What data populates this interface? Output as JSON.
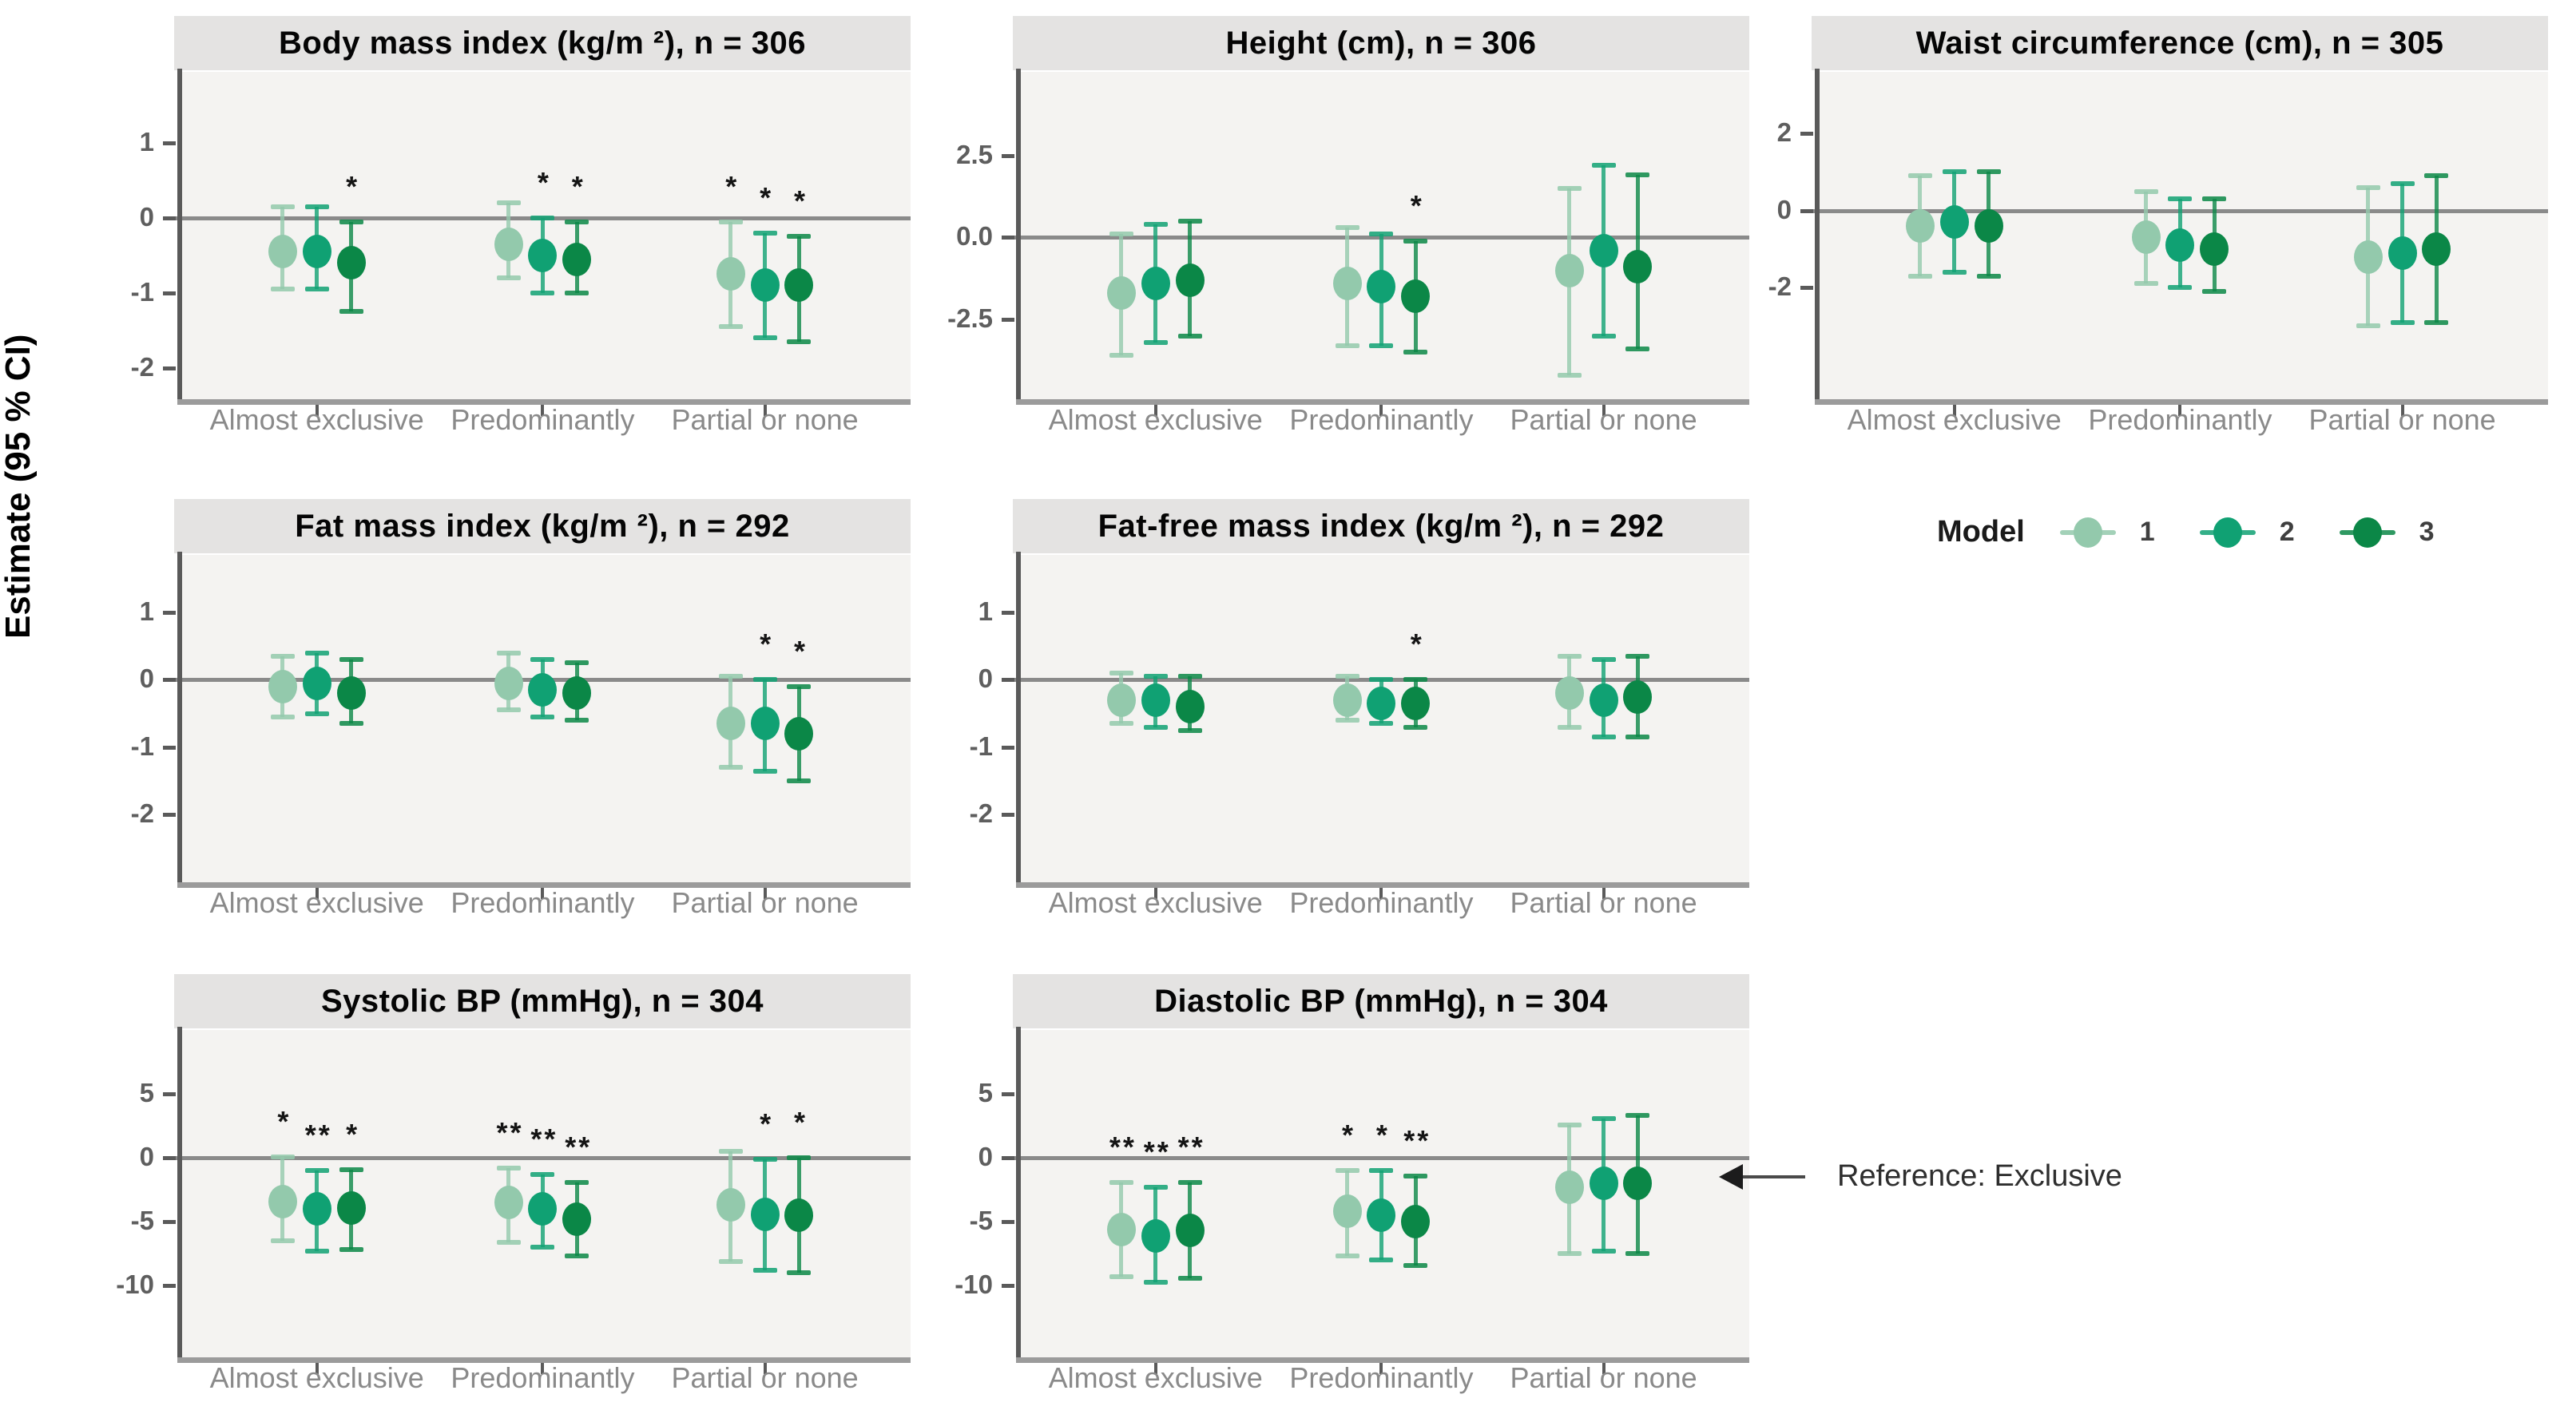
{
  "figure": {
    "ylabel": "Estimate (95 % CI)",
    "legend_title": "Model",
    "reference_note": "Reference: Exclusive"
  },
  "chart_data": {
    "type": "scatter",
    "subtype": "dot-and-95CI-forest-facets",
    "x_categories": [
      "Almost exclusive",
      "Predominantly",
      "Partial or none"
    ],
    "legend_position": "right-middle",
    "grid": "off",
    "models": [
      {
        "label": "1",
        "color": "#93c9ac"
      },
      {
        "label": "2",
        "color": "#10a173"
      },
      {
        "label": "3",
        "color": "#0b8747"
      }
    ],
    "panels": [
      {
        "id": "bmi",
        "row": 0,
        "col": 0,
        "title": "Body mass index (kg/m ²), n = 306",
        "ydomain": [
          1.95,
          -2.42
        ],
        "yticks": [
          {
            "label": "1",
            "value": 1
          },
          {
            "label": "0",
            "value": 0
          },
          {
            "label": "-1",
            "value": -1
          },
          {
            "label": "-2",
            "value": -2
          }
        ],
        "groups": [
          {
            "category": "Almost exclusive",
            "points": [
              {
                "model": "1",
                "est": -0.45,
                "lo": -0.95,
                "hi": 0.15,
                "sig": ""
              },
              {
                "model": "2",
                "est": -0.45,
                "lo": -0.95,
                "hi": 0.15,
                "sig": ""
              },
              {
                "model": "3",
                "est": -0.6,
                "lo": -1.25,
                "hi": -0.05,
                "sig": "*"
              }
            ]
          },
          {
            "category": "Predominantly",
            "points": [
              {
                "model": "1",
                "est": -0.35,
                "lo": -0.8,
                "hi": 0.2,
                "sig": ""
              },
              {
                "model": "2",
                "est": -0.5,
                "lo": -1.0,
                "hi": 0.0,
                "sig": "*"
              },
              {
                "model": "3",
                "est": -0.55,
                "lo": -1.0,
                "hi": -0.05,
                "sig": "*"
              }
            ]
          },
          {
            "category": "Partial or none",
            "points": [
              {
                "model": "1",
                "est": -0.75,
                "lo": -1.45,
                "hi": -0.05,
                "sig": "*"
              },
              {
                "model": "2",
                "est": -0.9,
                "lo": -1.6,
                "hi": -0.2,
                "sig": "*"
              },
              {
                "model": "3",
                "est": -0.9,
                "lo": -1.65,
                "hi": -0.25,
                "sig": "*"
              }
            ]
          }
        ]
      },
      {
        "id": "height",
        "row": 0,
        "col": 1,
        "title": "Height (cm), n = 306",
        "ydomain": [
          5.05,
          -4.93
        ],
        "yticks": [
          {
            "label": "2.5",
            "value": 2.5
          },
          {
            "label": "0.0",
            "value": 0
          },
          {
            "label": "-2.5",
            "value": -2.5
          }
        ],
        "groups": [
          {
            "category": "Almost exclusive",
            "points": [
              {
                "model": "1",
                "est": -1.7,
                "lo": -3.6,
                "hi": 0.1,
                "sig": ""
              },
              {
                "model": "2",
                "est": -1.4,
                "lo": -3.2,
                "hi": 0.4,
                "sig": ""
              },
              {
                "model": "3",
                "est": -1.3,
                "lo": -3.0,
                "hi": 0.5,
                "sig": ""
              }
            ]
          },
          {
            "category": "Predominantly",
            "points": [
              {
                "model": "1",
                "est": -1.4,
                "lo": -3.3,
                "hi": 0.3,
                "sig": ""
              },
              {
                "model": "2",
                "est": -1.5,
                "lo": -3.3,
                "hi": 0.1,
                "sig": ""
              },
              {
                "model": "3",
                "est": -1.8,
                "lo": -3.5,
                "hi": -0.1,
                "sig": "*"
              }
            ]
          },
          {
            "category": "Partial or none",
            "points": [
              {
                "model": "1",
                "est": -1.0,
                "lo": -4.2,
                "hi": 1.5,
                "sig": ""
              },
              {
                "model": "2",
                "est": -0.4,
                "lo": -3.0,
                "hi": 2.2,
                "sig": ""
              },
              {
                "model": "3",
                "est": -0.9,
                "lo": -3.4,
                "hi": 1.9,
                "sig": ""
              }
            ]
          }
        ]
      },
      {
        "id": "waist",
        "row": 0,
        "col": 2,
        "title": "Waist circumference (cm), n = 305",
        "ydomain": [
          3.6,
          -4.9
        ],
        "yticks": [
          {
            "label": "2",
            "value": 2
          },
          {
            "label": "0",
            "value": 0
          },
          {
            "label": "-2",
            "value": -2
          }
        ],
        "groups": [
          {
            "category": "Almost exclusive",
            "points": [
              {
                "model": "1",
                "est": -0.4,
                "lo": -1.7,
                "hi": 0.9,
                "sig": ""
              },
              {
                "model": "2",
                "est": -0.3,
                "lo": -1.6,
                "hi": 1.0,
                "sig": ""
              },
              {
                "model": "3",
                "est": -0.4,
                "lo": -1.7,
                "hi": 1.0,
                "sig": ""
              }
            ]
          },
          {
            "category": "Predominantly",
            "points": [
              {
                "model": "1",
                "est": -0.7,
                "lo": -1.9,
                "hi": 0.5,
                "sig": ""
              },
              {
                "model": "2",
                "est": -0.9,
                "lo": -2.0,
                "hi": 0.3,
                "sig": ""
              },
              {
                "model": "3",
                "est": -1.0,
                "lo": -2.1,
                "hi": 0.3,
                "sig": ""
              }
            ]
          },
          {
            "category": "Partial or none",
            "points": [
              {
                "model": "1",
                "est": -1.2,
                "lo": -3.0,
                "hi": 0.6,
                "sig": ""
              },
              {
                "model": "2",
                "est": -1.1,
                "lo": -2.9,
                "hi": 0.7,
                "sig": ""
              },
              {
                "model": "3",
                "est": -1.0,
                "lo": -2.9,
                "hi": 0.9,
                "sig": ""
              }
            ]
          }
        ]
      },
      {
        "id": "fmi",
        "row": 1,
        "col": 0,
        "title": "Fat mass index (kg/m ²), n = 292",
        "ydomain": [
          1.85,
          -3.0
        ],
        "yticks": [
          {
            "label": "1",
            "value": 1
          },
          {
            "label": "0",
            "value": 0
          },
          {
            "label": "-1",
            "value": -1
          },
          {
            "label": "-2",
            "value": -2
          }
        ],
        "groups": [
          {
            "category": "Almost exclusive",
            "points": [
              {
                "model": "1",
                "est": -0.1,
                "lo": -0.55,
                "hi": 0.35,
                "sig": ""
              },
              {
                "model": "2",
                "est": -0.05,
                "lo": -0.5,
                "hi": 0.4,
                "sig": ""
              },
              {
                "model": "3",
                "est": -0.2,
                "lo": -0.65,
                "hi": 0.3,
                "sig": ""
              }
            ]
          },
          {
            "category": "Predominantly",
            "points": [
              {
                "model": "1",
                "est": -0.05,
                "lo": -0.45,
                "hi": 0.4,
                "sig": ""
              },
              {
                "model": "2",
                "est": -0.15,
                "lo": -0.55,
                "hi": 0.3,
                "sig": ""
              },
              {
                "model": "3",
                "est": -0.2,
                "lo": -0.6,
                "hi": 0.25,
                "sig": ""
              }
            ]
          },
          {
            "category": "Partial or none",
            "points": [
              {
                "model": "1",
                "est": -0.65,
                "lo": -1.3,
                "hi": 0.05,
                "sig": ""
              },
              {
                "model": "2",
                "est": -0.65,
                "lo": -1.35,
                "hi": 0.0,
                "sig": "*"
              },
              {
                "model": "3",
                "est": -0.8,
                "lo": -1.5,
                "hi": -0.1,
                "sig": "*"
              }
            ]
          }
        ]
      },
      {
        "id": "ffmi",
        "row": 1,
        "col": 1,
        "title": "Fat-free mass index (kg/m ²), n = 292",
        "ydomain": [
          1.85,
          -3.0
        ],
        "yticks": [
          {
            "label": "1",
            "value": 1
          },
          {
            "label": "0",
            "value": 0
          },
          {
            "label": "-1",
            "value": -1
          },
          {
            "label": "-2",
            "value": -2
          }
        ],
        "groups": [
          {
            "category": "Almost exclusive",
            "points": [
              {
                "model": "1",
                "est": -0.3,
                "lo": -0.65,
                "hi": 0.1,
                "sig": ""
              },
              {
                "model": "2",
                "est": -0.3,
                "lo": -0.7,
                "hi": 0.05,
                "sig": ""
              },
              {
                "model": "3",
                "est": -0.4,
                "lo": -0.75,
                "hi": 0.05,
                "sig": ""
              }
            ]
          },
          {
            "category": "Predominantly",
            "points": [
              {
                "model": "1",
                "est": -0.3,
                "lo": -0.6,
                "hi": 0.05,
                "sig": ""
              },
              {
                "model": "2",
                "est": -0.35,
                "lo": -0.65,
                "hi": 0.0,
                "sig": ""
              },
              {
                "model": "3",
                "est": -0.35,
                "lo": -0.7,
                "hi": 0.0,
                "sig": "*"
              }
            ]
          },
          {
            "category": "Partial or none",
            "points": [
              {
                "model": "1",
                "est": -0.2,
                "lo": -0.7,
                "hi": 0.35,
                "sig": ""
              },
              {
                "model": "2",
                "est": -0.3,
                "lo": -0.85,
                "hi": 0.3,
                "sig": ""
              },
              {
                "model": "3",
                "est": -0.25,
                "lo": -0.85,
                "hi": 0.35,
                "sig": ""
              }
            ]
          }
        ]
      },
      {
        "id": "sbp",
        "row": 2,
        "col": 0,
        "title": "Systolic BP (mmHg), n = 304",
        "ydomain": [
          10.0,
          -15.6
        ],
        "yticks": [
          {
            "label": "5",
            "value": 5
          },
          {
            "label": "0",
            "value": 0
          },
          {
            "label": "-5",
            "value": -5
          },
          {
            "label": "-10",
            "value": -10
          }
        ],
        "groups": [
          {
            "category": "Almost exclusive",
            "points": [
              {
                "model": "1",
                "est": -3.4,
                "lo": -6.5,
                "hi": 0.1,
                "sig": "*"
              },
              {
                "model": "2",
                "est": -4.0,
                "lo": -7.3,
                "hi": -1.0,
                "sig": "**"
              },
              {
                "model": "3",
                "est": -3.9,
                "lo": -7.2,
                "hi": -0.9,
                "sig": "*"
              }
            ]
          },
          {
            "category": "Predominantly",
            "points": [
              {
                "model": "1",
                "est": -3.5,
                "lo": -6.6,
                "hi": -0.8,
                "sig": "**"
              },
              {
                "model": "2",
                "est": -4.0,
                "lo": -7.0,
                "hi": -1.3,
                "sig": "**"
              },
              {
                "model": "3",
                "est": -4.8,
                "lo": -7.7,
                "hi": -1.9,
                "sig": "**"
              }
            ]
          },
          {
            "category": "Partial or none",
            "points": [
              {
                "model": "1",
                "est": -3.7,
                "lo": -8.1,
                "hi": 0.5,
                "sig": ""
              },
              {
                "model": "2",
                "est": -4.4,
                "lo": -8.8,
                "hi": -0.1,
                "sig": "*"
              },
              {
                "model": "3",
                "est": -4.5,
                "lo": -9.0,
                "hi": 0.0,
                "sig": "*"
              }
            ]
          }
        ]
      },
      {
        "id": "dbp",
        "row": 2,
        "col": 1,
        "title": "Diastolic BP (mmHg), n = 304",
        "ydomain": [
          10.0,
          -15.6
        ],
        "yticks": [
          {
            "label": "5",
            "value": 5
          },
          {
            "label": "0",
            "value": 0
          },
          {
            "label": "-5",
            "value": -5
          },
          {
            "label": "-10",
            "value": -10
          }
        ],
        "groups": [
          {
            "category": "Almost exclusive",
            "points": [
              {
                "model": "1",
                "est": -5.6,
                "lo": -9.3,
                "hi": -1.9,
                "sig": "**"
              },
              {
                "model": "2",
                "est": -6.1,
                "lo": -9.7,
                "hi": -2.3,
                "sig": "**"
              },
              {
                "model": "3",
                "est": -5.7,
                "lo": -9.4,
                "hi": -1.9,
                "sig": "**"
              }
            ]
          },
          {
            "category": "Predominantly",
            "points": [
              {
                "model": "1",
                "est": -4.2,
                "lo": -7.7,
                "hi": -1.0,
                "sig": "*"
              },
              {
                "model": "2",
                "est": -4.5,
                "lo": -8.0,
                "hi": -1.0,
                "sig": "*"
              },
              {
                "model": "3",
                "est": -5.0,
                "lo": -8.4,
                "hi": -1.4,
                "sig": "**"
              }
            ]
          },
          {
            "category": "Partial or none",
            "points": [
              {
                "model": "1",
                "est": -2.3,
                "lo": -7.5,
                "hi": 2.6,
                "sig": ""
              },
              {
                "model": "2",
                "est": -2.0,
                "lo": -7.3,
                "hi": 3.1,
                "sig": ""
              },
              {
                "model": "3",
                "est": -2.0,
                "lo": -7.5,
                "hi": 3.3,
                "sig": ""
              }
            ]
          }
        ]
      }
    ]
  }
}
